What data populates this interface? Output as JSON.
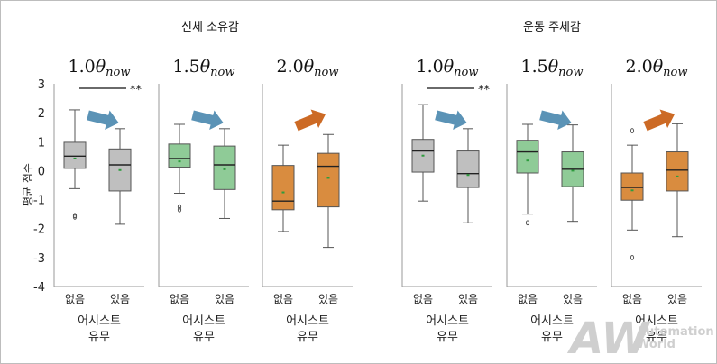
{
  "chart_data": {
    "type": "box",
    "y_range": [
      -4,
      3
    ],
    "y_ticks": [
      3,
      2,
      1,
      0,
      -1,
      -2,
      -3,
      -4
    ],
    "ylabel": "평균 점수",
    "xlabel_line1": "어시스트",
    "xlabel_line2": "유무",
    "categories": [
      "없음",
      "있음"
    ],
    "groups": [
      {
        "title": "신체 소유감",
        "panels": [
          {
            "title_coef": "1.0",
            "title_sub": "now",
            "color": "#bfbfbf",
            "arrow_color": "#5b93b6",
            "significance": "**",
            "boxes": [
              {
                "min": -0.62,
                "q1": 0.08,
                "median": 0.5,
                "q3": 0.98,
                "max": 2.1,
                "mean": 0.42,
                "outliers": [
                  -1.55,
                  -1.6
                ]
              },
              {
                "min": -1.85,
                "q1": -0.7,
                "median": 0.2,
                "q3": 0.75,
                "max": 1.45,
                "mean": 0.02,
                "outliers": []
              }
            ]
          },
          {
            "title_coef": "1.5",
            "title_sub": "now",
            "color": "#8fcb97",
            "arrow_color": "#5b93b6",
            "significance": "",
            "boxes": [
              {
                "min": -0.78,
                "q1": 0.12,
                "median": 0.42,
                "q3": 0.92,
                "max": 1.6,
                "mean": 0.32,
                "outliers": [
                  -1.25,
                  -1.35
                ]
              },
              {
                "min": -1.65,
                "q1": -0.65,
                "median": 0.2,
                "q3": 0.85,
                "max": 1.45,
                "mean": 0.05,
                "outliers": []
              }
            ]
          },
          {
            "title_coef": "2.0",
            "title_sub": "now",
            "color": "#d98c3f",
            "arrow_color": "#cc6a25",
            "significance": "",
            "boxes": [
              {
                "min": -2.1,
                "q1": -1.35,
                "median": -1.05,
                "q3": 0.18,
                "max": 0.88,
                "mean": -0.75,
                "outliers": []
              },
              {
                "min": -2.65,
                "q1": -1.25,
                "median": 0.15,
                "q3": 0.6,
                "max": 1.25,
                "mean": -0.25,
                "outliers": []
              }
            ]
          }
        ]
      },
      {
        "title": "운동 주체감",
        "panels": [
          {
            "title_coef": "1.0",
            "title_sub": "now",
            "color": "#bfbfbf",
            "arrow_color": "#5b93b6",
            "significance": "**",
            "boxes": [
              {
                "min": -1.05,
                "q1": -0.05,
                "median": 0.68,
                "q3": 1.08,
                "max": 2.28,
                "mean": 0.52,
                "outliers": []
              },
              {
                "min": -1.8,
                "q1": -0.58,
                "median": -0.1,
                "q3": 0.68,
                "max": 1.45,
                "mean": -0.15,
                "outliers": []
              }
            ]
          },
          {
            "title_coef": "1.5",
            "title_sub": "now",
            "color": "#8fcb97",
            "arrow_color": "#5b93b6",
            "significance": "",
            "boxes": [
              {
                "min": -1.5,
                "q1": -0.08,
                "median": 0.65,
                "q3": 1.05,
                "max": 1.6,
                "mean": 0.35,
                "outliers": [
                  -1.8
                ]
              },
              {
                "min": -1.75,
                "q1": -0.55,
                "median": 0.05,
                "q3": 0.65,
                "max": 1.58,
                "mean": 0.0,
                "outliers": []
              }
            ]
          },
          {
            "title_coef": "2.0",
            "title_sub": "now",
            "color": "#d98c3f",
            "arrow_color": "#cc6a25",
            "significance": "",
            "boxes": [
              {
                "min": -2.05,
                "q1": -1.02,
                "median": -0.58,
                "q3": -0.08,
                "max": 0.88,
                "mean": -0.68,
                "outliers": [
                  1.38,
                  -3.0
                ]
              },
              {
                "min": -2.28,
                "q1": -0.7,
                "median": 0.02,
                "q3": 0.65,
                "max": 1.62,
                "mean": -0.2,
                "outliers": []
              }
            ]
          }
        ]
      }
    ]
  },
  "watermark": {
    "logo": "AW",
    "line1": "Automation",
    "line2": "World"
  }
}
